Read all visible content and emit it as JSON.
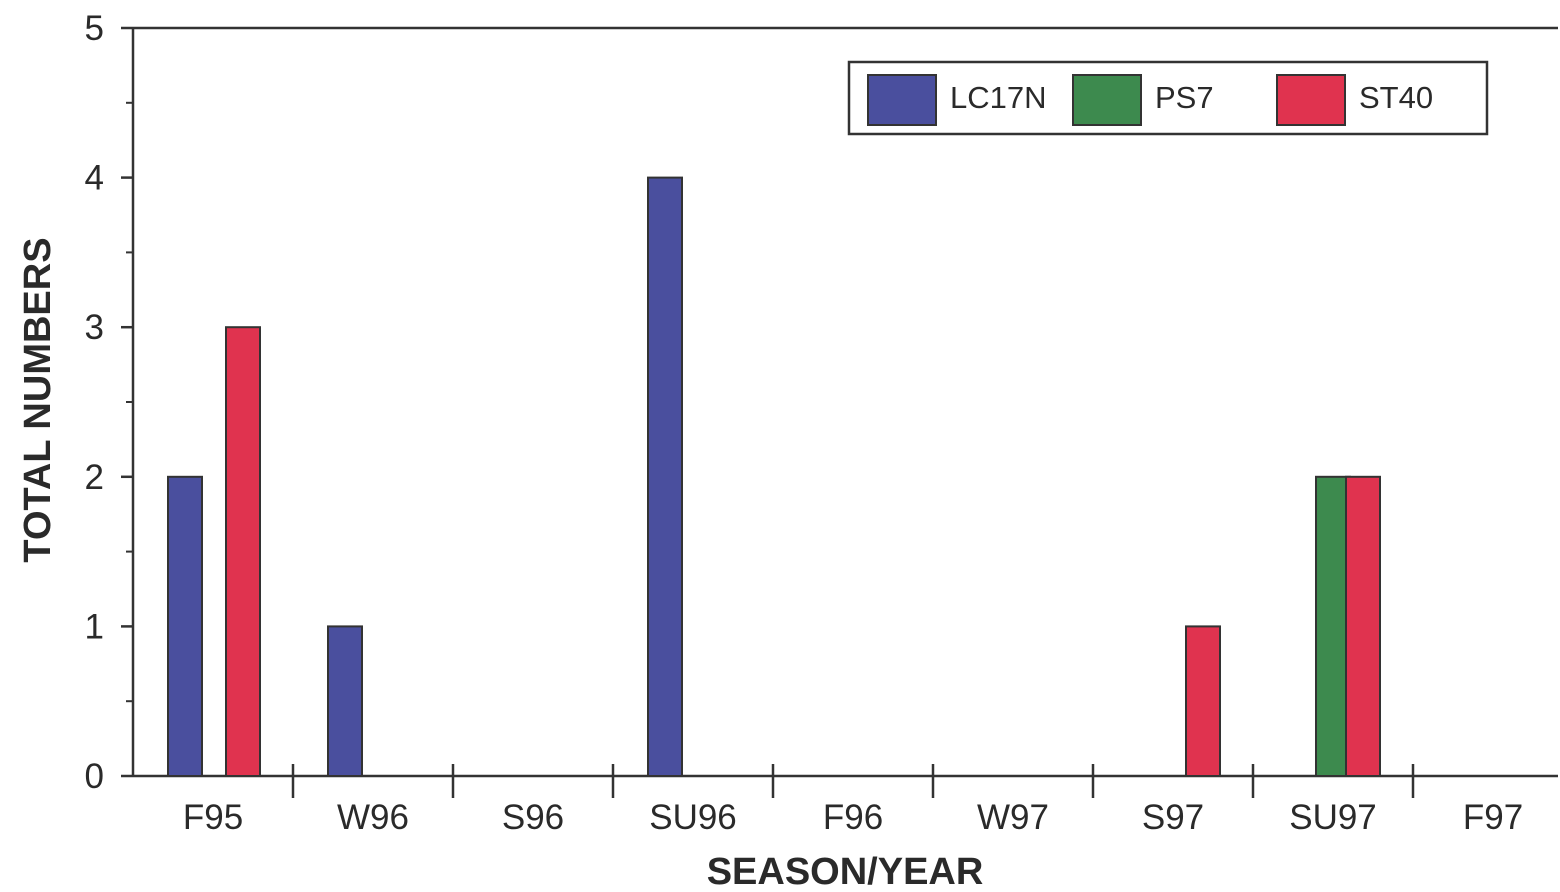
{
  "chart_data": {
    "type": "bar",
    "title": "",
    "xlabel": "SEASON/YEAR",
    "ylabel": "TOTAL NUMBERS",
    "categories": [
      "F95",
      "W96",
      "S96",
      "SU96",
      "F96",
      "W97",
      "S97",
      "SU97",
      "F97"
    ],
    "series": [
      {
        "name": "LC17N",
        "color": "#4a4f9e",
        "values": [
          2,
          1,
          0,
          4,
          0,
          0,
          0,
          0,
          0
        ]
      },
      {
        "name": "PS7",
        "color": "#3d8a4e",
        "values": [
          0,
          0,
          0,
          0,
          0,
          0,
          0,
          2,
          0
        ]
      },
      {
        "name": "ST40",
        "color": "#e0334f",
        "values": [
          3,
          0,
          0,
          0,
          0,
          0,
          1,
          2,
          0
        ]
      }
    ],
    "ylim": [
      0,
      5
    ],
    "yticks": [
      0,
      1,
      2,
      3,
      4,
      5
    ],
    "grid": false,
    "legend_position": "top-right"
  }
}
